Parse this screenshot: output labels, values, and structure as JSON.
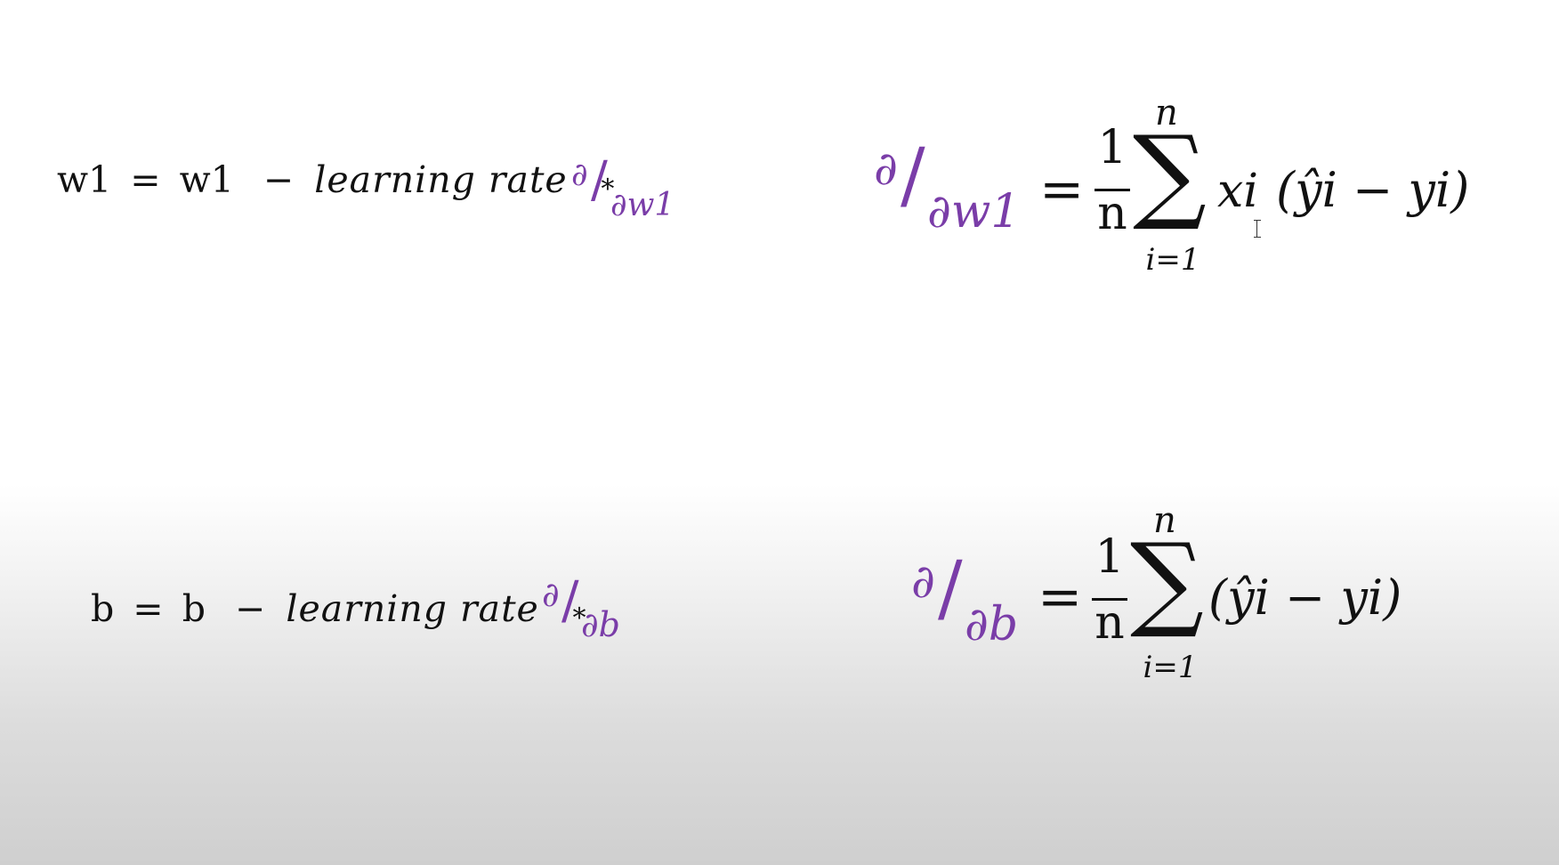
{
  "update_w1": {
    "lhs": "w1",
    "eq": "=",
    "var": "w1",
    "minus": "−",
    "lr": "learning rate",
    "times": "∗",
    "d_num": "∂",
    "d_slash": "/",
    "d_den": "∂w1"
  },
  "update_b": {
    "lhs": "b",
    "eq": "=",
    "var": "b",
    "minus": "−",
    "lr": "learning rate",
    "times": "∗",
    "d_num": "∂",
    "d_slash": "/",
    "d_den": "∂b"
  },
  "grad_w1": {
    "d_num": "∂",
    "d_slash": "/",
    "d_den": "∂w1",
    "eq": "=",
    "frac_num": "1",
    "frac_den": "n",
    "sigma": "∑",
    "upper": "n",
    "lower": "i=1",
    "x_term": "xi",
    "paren_expr": "(ŷi − yi)"
  },
  "grad_b": {
    "d_num": "∂",
    "d_slash": "/",
    "d_den": "∂b",
    "eq": "=",
    "frac_num": "1",
    "frac_den": "n",
    "sigma": "∑",
    "upper": "n",
    "lower": "i=1",
    "paren_expr": "(ŷi − yi)"
  },
  "colors": {
    "partial": "#7a3da8",
    "text": "#111111"
  }
}
